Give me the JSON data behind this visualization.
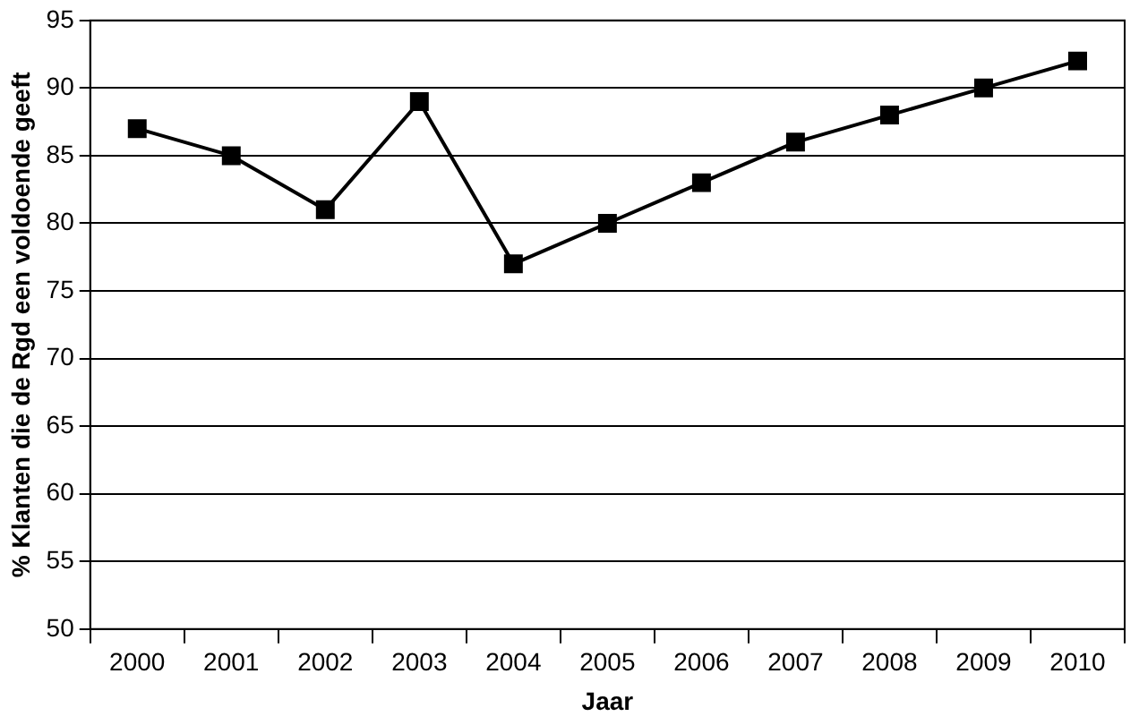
{
  "chart_data": {
    "type": "line",
    "xlabel": "Jaar",
    "ylabel": "% Klanten die de Rgd een voldoende geeft",
    "categories": [
      "2000",
      "2001",
      "2002",
      "2003",
      "2004",
      "2005",
      "2006",
      "2007",
      "2008",
      "2009",
      "2010"
    ],
    "series": [
      {
        "color": "#000000",
        "values": [
          87,
          85,
          81,
          89,
          77,
          80,
          83,
          86,
          88,
          90,
          92
        ]
      }
    ],
    "ylim": [
      50,
      95
    ],
    "yticks": [
      50,
      55,
      60,
      65,
      70,
      75,
      80,
      85,
      90,
      95
    ],
    "grid": "y",
    "legend": false,
    "marker": "square",
    "line_style": "solid"
  }
}
